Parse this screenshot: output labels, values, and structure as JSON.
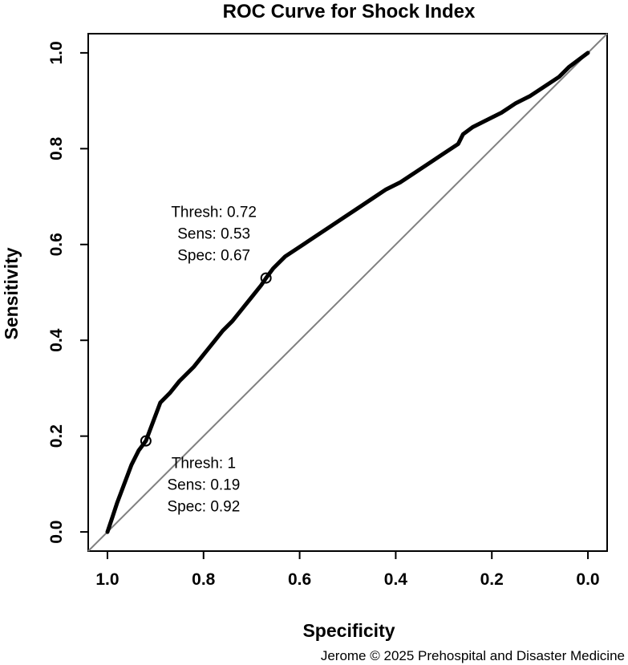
{
  "chart_data": {
    "type": "line",
    "title": "ROC Curve for Shock Index",
    "xlabel": "Specificity",
    "ylabel": "Sensitivity",
    "xlim": [
      1.04,
      -0.04
    ],
    "ylim": [
      -0.04,
      1.04
    ],
    "x_reversed": true,
    "x_ticks": [
      "1.0",
      "0.8",
      "0.6",
      "0.4",
      "0.2",
      "0.0"
    ],
    "y_ticks": [
      "0.0",
      "0.2",
      "0.4",
      "0.6",
      "0.8",
      "1.0"
    ],
    "grid": false,
    "legend": "none",
    "series": [
      {
        "values_xy": [
          [
            1.0,
            0.0
          ],
          [
            0.99,
            0.03
          ],
          [
            0.98,
            0.06
          ],
          [
            0.965,
            0.1
          ],
          [
            0.95,
            0.14
          ],
          [
            0.935,
            0.17
          ],
          [
            0.92,
            0.19
          ],
          [
            0.905,
            0.23
          ],
          [
            0.89,
            0.27
          ],
          [
            0.87,
            0.29
          ],
          [
            0.85,
            0.315
          ],
          [
            0.82,
            0.345
          ],
          [
            0.8,
            0.37
          ],
          [
            0.78,
            0.395
          ],
          [
            0.76,
            0.42
          ],
          [
            0.74,
            0.44
          ],
          [
            0.72,
            0.465
          ],
          [
            0.7,
            0.49
          ],
          [
            0.68,
            0.515
          ],
          [
            0.67,
            0.53
          ],
          [
            0.655,
            0.55
          ],
          [
            0.63,
            0.575
          ],
          [
            0.6,
            0.595
          ],
          [
            0.57,
            0.615
          ],
          [
            0.54,
            0.635
          ],
          [
            0.51,
            0.655
          ],
          [
            0.48,
            0.675
          ],
          [
            0.45,
            0.695
          ],
          [
            0.42,
            0.715
          ],
          [
            0.39,
            0.73
          ],
          [
            0.36,
            0.75
          ],
          [
            0.33,
            0.77
          ],
          [
            0.3,
            0.79
          ],
          [
            0.27,
            0.81
          ],
          [
            0.26,
            0.83
          ],
          [
            0.24,
            0.845
          ],
          [
            0.21,
            0.86
          ],
          [
            0.18,
            0.875
          ],
          [
            0.15,
            0.895
          ],
          [
            0.12,
            0.91
          ],
          [
            0.09,
            0.93
          ],
          [
            0.06,
            0.95
          ],
          [
            0.04,
            0.97
          ],
          [
            0.02,
            0.985
          ],
          [
            0.0,
            1.0
          ]
        ]
      }
    ],
    "reference_line": [
      [
        1.04,
        -0.04
      ],
      [
        -0.04,
        1.04
      ]
    ],
    "colors": {
      "curve": "#000000",
      "reference": "#808080"
    },
    "annotations": [
      {
        "specificity": 0.67,
        "sensitivity": 0.53,
        "lines": [
          "Thresh: 0.72",
          "Sens: 0.53",
          "Spec: 0.67"
        ]
      },
      {
        "specificity": 0.92,
        "sensitivity": 0.19,
        "lines": [
          "Thresh: 1",
          "Sens: 0.19",
          "Spec: 0.92"
        ]
      }
    ],
    "credit": "Jerome © 2025 Prehospital and Disaster Medicine"
  }
}
